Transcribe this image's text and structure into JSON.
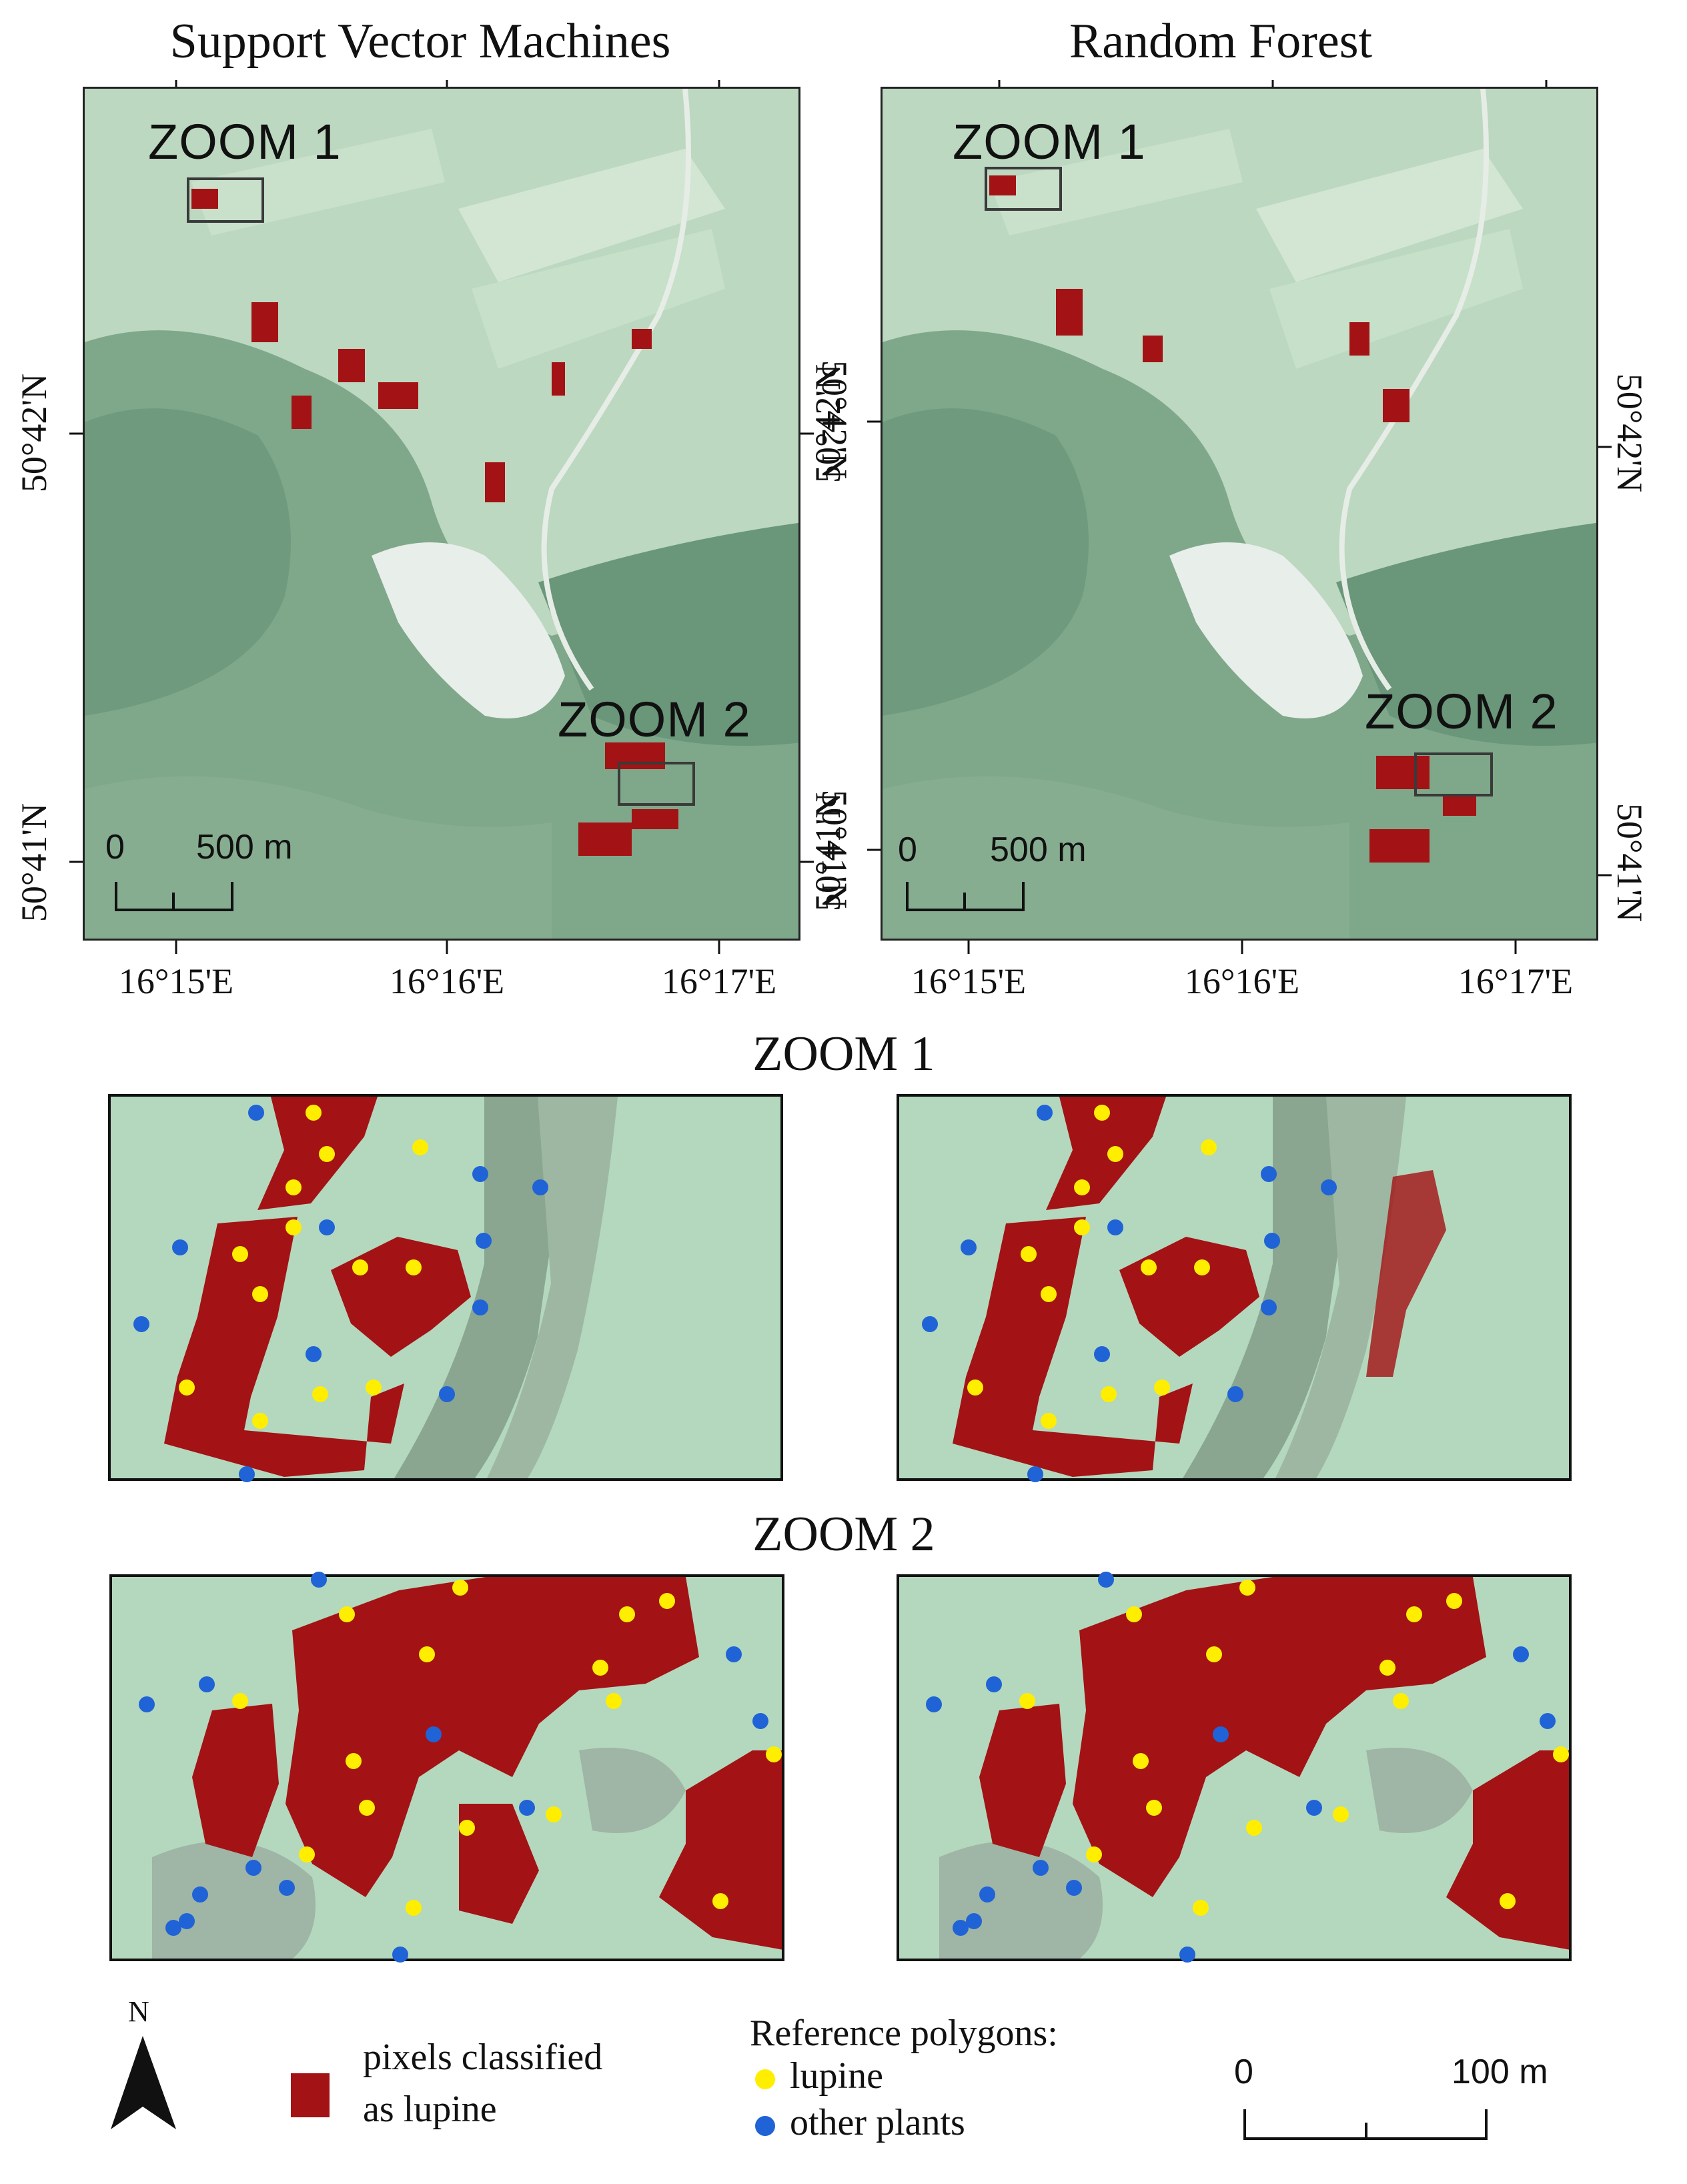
{
  "overview": {
    "svm_title": "Support Vector Machines",
    "rf_title": "Random Forest",
    "zoom1_label": "ZOOM 1",
    "zoom2_label": "ZOOM 2",
    "x_ticks": [
      "16°15'E",
      "16°16'E",
      "16°17'E"
    ],
    "y_ticks": [
      "50°42'N",
      "50°41'N"
    ],
    "scale": {
      "start": "0",
      "end": "500 m"
    }
  },
  "zooms": {
    "zoom1_title": "ZOOM 1",
    "zoom2_title": "ZOOM 2"
  },
  "legend": {
    "north": "N",
    "classified_line1": "pixels classified",
    "classified_line2": "as lupine",
    "reference_title": "Reference polygons:",
    "lupine": "lupine",
    "other": "other plants",
    "scale_start": "0",
    "scale_end": "100 m"
  },
  "colors": {
    "lupine_pixels": "#a31214",
    "lupine_point": "#ffee00",
    "other_point": "#1f63d6",
    "frame": "#111111"
  }
}
